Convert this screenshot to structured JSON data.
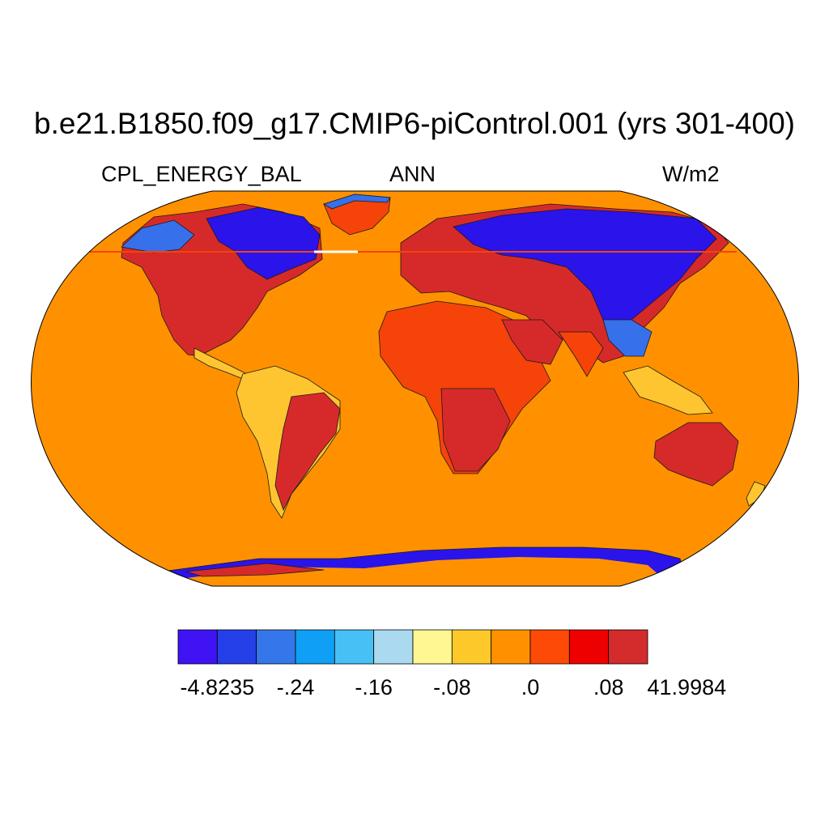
{
  "title": "b.e21.B1850.f09_g17.CMIP6-piControl.001 (yrs 301-400)",
  "left_string": "CPL_ENERGY_BAL",
  "center_string": "ANN",
  "right_string": "W/m2",
  "colors": {
    "ocean": "#ff9100",
    "coastline": "#1a1a1a",
    "land_hot": "#d62a2a",
    "land_warm": "#f5430a",
    "land_cold": "#2a14ea",
    "land_cool": "#3670ea",
    "land_mild": "#fec531",
    "ice_edge": "#3510ec"
  },
  "colorbar": {
    "colors": [
      "#4013f4",
      "#2540e9",
      "#3577ea",
      "#0fa0f5",
      "#46c0f5",
      "#aad9f0",
      "#fef792",
      "#fdc92a",
      "#ff9100",
      "#fd4a06",
      "#ee0000",
      "#d42b2d"
    ],
    "labels": [
      "-4.8235",
      "-.24",
      "-.16",
      "-.08",
      ".0",
      ".08",
      "41.9984"
    ]
  }
}
